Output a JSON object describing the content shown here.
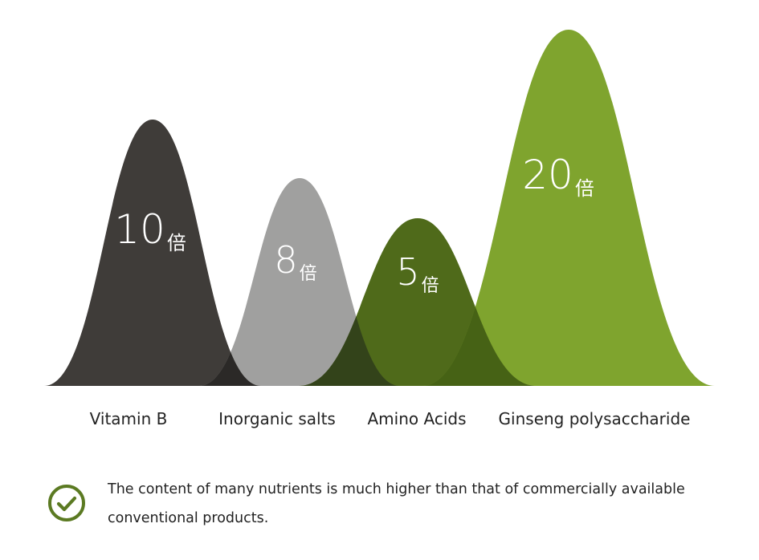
{
  "chart_data": {
    "type": "area",
    "categories": [
      "Vitamin B",
      "Inorganic salts",
      "Amino Acids",
      "Ginseng polysaccharide"
    ],
    "values": [
      10,
      8,
      5,
      20
    ],
    "value_labels": [
      {
        "number": "10",
        "unit": "倍"
      },
      {
        "number": "8",
        "unit": "倍"
      },
      {
        "number": "5",
        "unit": "倍"
      },
      {
        "number": "20",
        "unit": "倍"
      }
    ],
    "colors": [
      "#3f3c39",
      "#a0a09f",
      "#4f6a1a",
      "#7fa42e"
    ],
    "overlap_colors": [
      "#2b2927",
      "#33431a",
      "#466215"
    ],
    "grid": false,
    "legend": "none"
  },
  "note": {
    "icon": "check-circle-icon",
    "icon_color": "#5b7a22",
    "text": "The content of many nutrients is much higher than that of commercially available conventional products."
  }
}
